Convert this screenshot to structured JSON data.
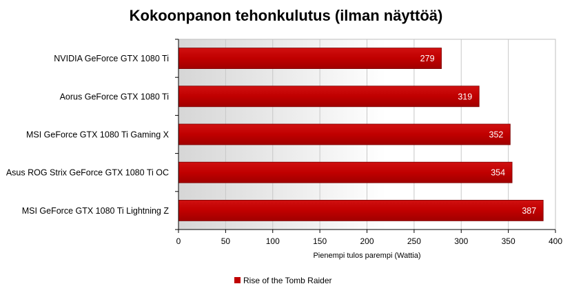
{
  "chart_data": {
    "type": "bar",
    "orientation": "horizontal",
    "title": "Kokoonpanon tehonkulutus (ilman näyttöä)",
    "xlabel": "Pienempi tulos parempi (Wattia)",
    "ylabel": "",
    "xlim": [
      0,
      400
    ],
    "ticks": [
      0,
      50,
      100,
      150,
      200,
      250,
      300,
      350,
      400
    ],
    "grid": true,
    "legend_position": "bottom",
    "categories": [
      "NVIDIA GeForce GTX 1080 Ti",
      "Aorus GeForce GTX 1080 Ti",
      "MSI GeForce GTX 1080 Ti Gaming X",
      "Asus ROG Strix GeForce GTX 1080 Ti OC",
      "MSI GeForce GTX 1080 Ti Lightning Z"
    ],
    "series": [
      {
        "name": "Rise of the Tomb Raider",
        "color": "#c00000",
        "values": [
          279,
          319,
          352,
          354,
          387
        ]
      }
    ]
  }
}
